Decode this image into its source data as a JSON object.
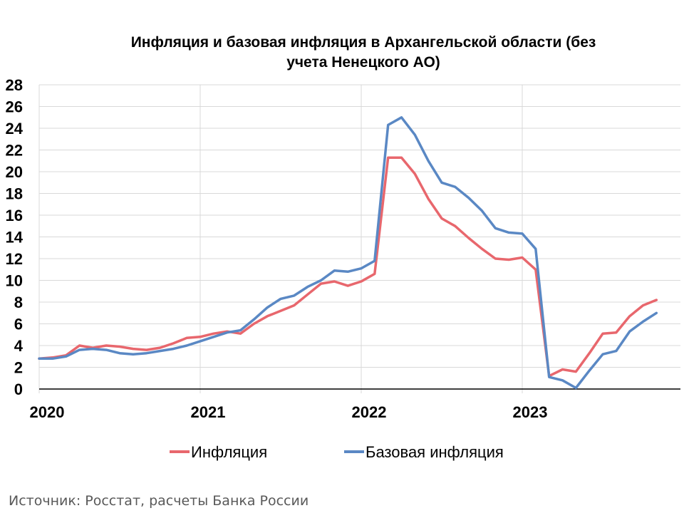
{
  "chart_data": {
    "type": "line",
    "title_line1": "Инфляция и базовая инфляция в Архангельской области (без",
    "title_line2": "учета Ненецкого АО)",
    "ylim": [
      0,
      28
    ],
    "y_ticks": [
      "0",
      "2",
      "4",
      "6",
      "8",
      "10",
      "12",
      "14",
      "16",
      "18",
      "20",
      "22",
      "24",
      "26",
      "28"
    ],
    "x_tick_labels": [
      "2020",
      "2021",
      "2022",
      "2023"
    ],
    "x_month_start": "2020-01",
    "grid": true,
    "legend_position": "bottom",
    "series": [
      {
        "name": "Инфляция",
        "color": "#e8676d",
        "values": [
          2.8,
          2.9,
          3.1,
          4.0,
          3.8,
          4.0,
          3.9,
          3.7,
          3.6,
          3.8,
          4.2,
          4.7,
          4.8,
          5.1,
          5.3,
          5.1,
          6.0,
          6.7,
          7.2,
          7.7,
          8.7,
          9.7,
          9.9,
          9.5,
          9.9,
          10.6,
          21.3,
          21.3,
          19.8,
          17.5,
          15.7,
          15.0,
          13.9,
          12.9,
          12.0,
          11.9,
          12.1,
          11.0,
          1.2,
          1.8,
          1.6,
          3.3,
          5.1,
          5.2,
          6.7,
          7.7,
          8.2
        ]
      },
      {
        "name": "Базовая инфляция",
        "color": "#5a88c4",
        "values": [
          2.8,
          2.8,
          3.0,
          3.6,
          3.7,
          3.6,
          3.3,
          3.2,
          3.3,
          3.5,
          3.7,
          4.0,
          4.4,
          4.8,
          5.2,
          5.4,
          6.4,
          7.5,
          8.3,
          8.6,
          9.4,
          10.0,
          10.9,
          10.8,
          11.1,
          11.8,
          24.3,
          25.0,
          23.4,
          21.0,
          19.0,
          18.6,
          17.6,
          16.4,
          14.8,
          14.4,
          14.3,
          12.9,
          1.1,
          0.8,
          0.1,
          1.7,
          3.2,
          3.5,
          5.3,
          6.2,
          7.0
        ]
      }
    ]
  },
  "source": "Источник: Росстат, расчеты Банка России"
}
